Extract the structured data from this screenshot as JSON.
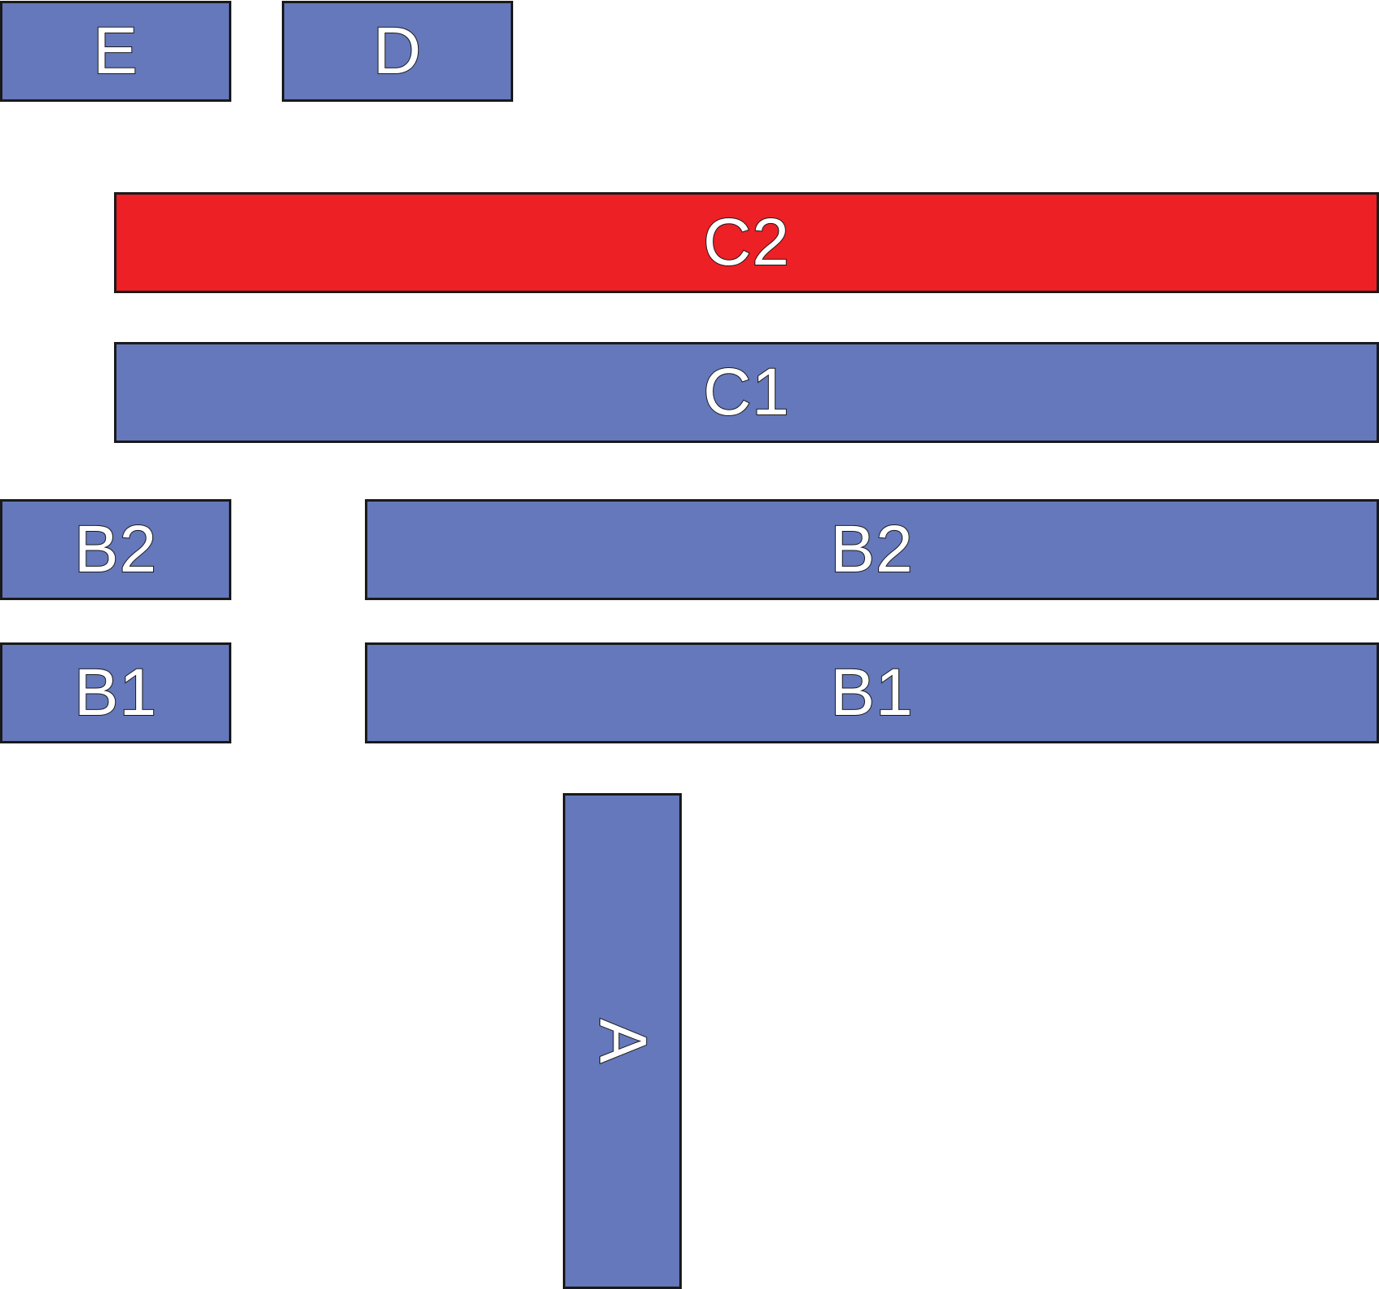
{
  "colors": {
    "default_block": "#6478bb",
    "highlight_block": "#ec2025",
    "border": "#1a1a1a",
    "label_fill": "#ffffff"
  },
  "blocks": {
    "e": {
      "label": "E",
      "color_role": "default_block"
    },
    "d": {
      "label": "D",
      "color_role": "default_block"
    },
    "c2": {
      "label": "C2",
      "color_role": "highlight_block"
    },
    "c1": {
      "label": "C1",
      "color_role": "default_block"
    },
    "b2_left": {
      "label": "B2",
      "color_role": "default_block"
    },
    "b2_right": {
      "label": "B2",
      "color_role": "default_block"
    },
    "b1_left": {
      "label": "B1",
      "color_role": "default_block"
    },
    "b1_right": {
      "label": "B1",
      "color_role": "default_block"
    },
    "a": {
      "label": "A",
      "color_role": "default_block",
      "orientation": "vertical"
    }
  }
}
